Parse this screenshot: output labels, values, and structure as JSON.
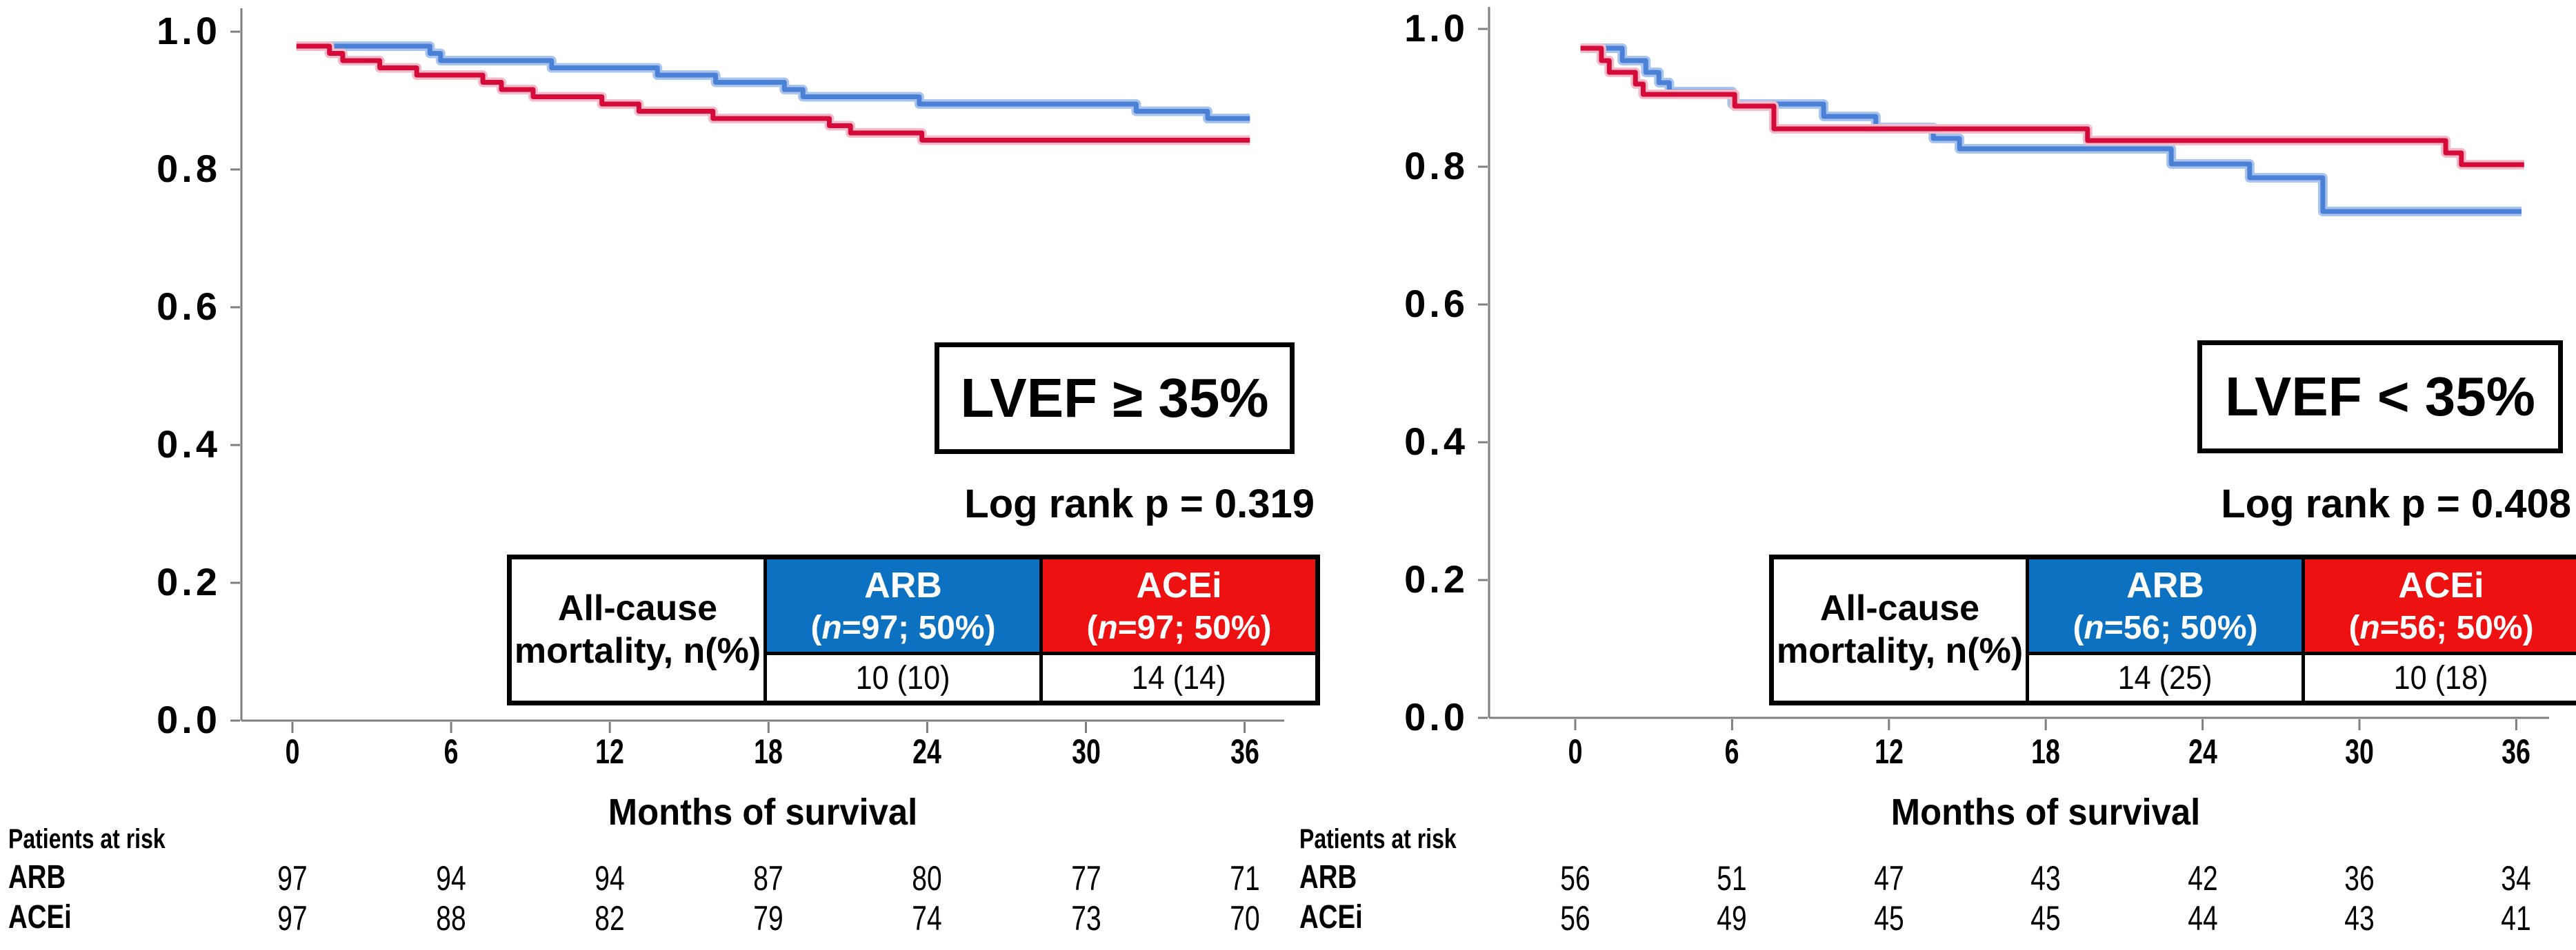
{
  "chart_data": [
    {
      "type": "line",
      "subtype": "kaplan-meier-step",
      "title": "LVEF ≥ 35%",
      "log_rank_label": "Log rank p = 0.319",
      "xlabel": "Months of survival",
      "x_ticks": [
        0,
        6,
        12,
        18,
        24,
        30,
        36
      ],
      "y_ticks": [
        {
          "label": "1.0",
          "value": 1.0
        },
        {
          "label": "0.8",
          "value": 0.8
        },
        {
          "label": "0.6",
          "value": 0.6
        },
        {
          "label": "0.4",
          "value": 0.4
        },
        {
          "label": "0.2",
          "value": 0.2
        },
        {
          "label": "0.0",
          "value": 0.0
        }
      ],
      "xlim": [
        0,
        38
      ],
      "ylim": [
        0,
        1.05
      ],
      "grid": false,
      "legend_position": "none",
      "series": [
        {
          "name": "ARB",
          "color": "#4a80d6",
          "halo": "#a9c5ed",
          "points": [
            [
              0.15,
              0.979
            ],
            [
              5.2,
              0.979
            ],
            [
              5.2,
              0.9685
            ],
            [
              5.6,
              0.9685
            ],
            [
              5.6,
              0.958
            ],
            [
              9.8,
              0.958
            ],
            [
              9.8,
              0.9475
            ],
            [
              13.8,
              0.9475
            ],
            [
              13.8,
              0.937
            ],
            [
              16.0,
              0.937
            ],
            [
              16.0,
              0.9265
            ],
            [
              18.6,
              0.9265
            ],
            [
              18.6,
              0.916
            ],
            [
              19.3,
              0.916
            ],
            [
              19.3,
              0.9055
            ],
            [
              23.7,
              0.9055
            ],
            [
              23.7,
              0.895
            ],
            [
              31.9,
              0.895
            ],
            [
              31.9,
              0.8845
            ],
            [
              34.6,
              0.8845
            ],
            [
              34.6,
              0.874
            ],
            [
              36.2,
              0.874
            ]
          ]
        },
        {
          "name": "ACEi",
          "color": "#d40a38",
          "halo": "#f5bbca",
          "points": [
            [
              0.15,
              0.979
            ],
            [
              1.4,
              0.979
            ],
            [
              1.4,
              0.9685
            ],
            [
              1.9,
              0.9685
            ],
            [
              1.9,
              0.958
            ],
            [
              3.3,
              0.958
            ],
            [
              3.3,
              0.9475
            ],
            [
              4.7,
              0.9475
            ],
            [
              4.7,
              0.937
            ],
            [
              7.2,
              0.937
            ],
            [
              7.2,
              0.9265
            ],
            [
              7.9,
              0.9265
            ],
            [
              7.9,
              0.916
            ],
            [
              9.1,
              0.916
            ],
            [
              9.1,
              0.9055
            ],
            [
              11.7,
              0.9055
            ],
            [
              11.7,
              0.895
            ],
            [
              13.1,
              0.895
            ],
            [
              13.1,
              0.8845
            ],
            [
              15.9,
              0.8845
            ],
            [
              15.9,
              0.874
            ],
            [
              20.3,
              0.874
            ],
            [
              20.3,
              0.8635
            ],
            [
              21.1,
              0.8635
            ],
            [
              21.1,
              0.853
            ],
            [
              23.8,
              0.853
            ],
            [
              23.8,
              0.8425
            ],
            [
              36.2,
              0.8425
            ]
          ]
        }
      ],
      "mortality_table": {
        "row_label_lines": [
          "All-cause",
          "mortality, n(%)"
        ],
        "columns": [
          {
            "name": "ARB",
            "n_parts": [
              "(",
              "n",
              "=97; 50%)"
            ],
            "value": "10 (10)",
            "color": "#0d71c1"
          },
          {
            "name": "ACEi",
            "n_parts": [
              "(",
              "n",
              "=97; 50%)"
            ],
            "value": "14 (14)",
            "color": "#ee1111"
          }
        ]
      },
      "at_risk": {
        "header": "Patients at risk",
        "rows": [
          {
            "label": "ARB",
            "values": [
              97,
              94,
              94,
              87,
              80,
              77,
              71
            ]
          },
          {
            "label": "ACEi",
            "values": [
              97,
              88,
              82,
              79,
              74,
              73,
              70
            ]
          }
        ]
      }
    },
    {
      "type": "line",
      "subtype": "kaplan-meier-step",
      "title": "LVEF < 35%",
      "log_rank_label": "Log rank p = 0.408",
      "xlabel": "Months of survival",
      "x_ticks": [
        0,
        6,
        12,
        18,
        24,
        30,
        36
      ],
      "y_ticks": [
        {
          "label": "1.0",
          "value": 1.0
        },
        {
          "label": "0.8",
          "value": 0.8
        },
        {
          "label": "0.6",
          "value": 0.6
        },
        {
          "label": "0.4",
          "value": 0.4
        },
        {
          "label": "0.2",
          "value": 0.2
        },
        {
          "label": "0.0",
          "value": 0.0
        }
      ],
      "xlim": [
        0,
        38
      ],
      "ylim": [
        0,
        1.05
      ],
      "grid": false,
      "legend_position": "none",
      "series": [
        {
          "name": "ARB",
          "color": "#4a80d6",
          "halo": "#a9c5ed",
          "points": [
            [
              0.2,
              0.972
            ],
            [
              1.8,
              0.972
            ],
            [
              1.8,
              0.954
            ],
            [
              2.7,
              0.954
            ],
            [
              2.7,
              0.937
            ],
            [
              3.2,
              0.937
            ],
            [
              3.2,
              0.922
            ],
            [
              3.6,
              0.922
            ],
            [
              3.6,
              0.909
            ],
            [
              6.0,
              0.909
            ],
            [
              6.0,
              0.891
            ],
            [
              9.5,
              0.891
            ],
            [
              9.5,
              0.873
            ],
            [
              11.5,
              0.873
            ],
            [
              11.5,
              0.857
            ],
            [
              13.7,
              0.857
            ],
            [
              13.7,
              0.841
            ],
            [
              14.7,
              0.841
            ],
            [
              14.7,
              0.826
            ],
            [
              22.8,
              0.826
            ],
            [
              22.8,
              0.804
            ],
            [
              25.8,
              0.804
            ],
            [
              25.8,
              0.784
            ],
            [
              28.6,
              0.784
            ],
            [
              28.6,
              0.735
            ],
            [
              36.2,
              0.735
            ]
          ]
        },
        {
          "name": "ACEi",
          "color": "#d40a38",
          "halo": "#f5bbca",
          "points": [
            [
              0.2,
              0.972
            ],
            [
              1.0,
              0.972
            ],
            [
              1.0,
              0.954
            ],
            [
              1.3,
              0.954
            ],
            [
              1.3,
              0.937
            ],
            [
              2.3,
              0.937
            ],
            [
              2.3,
              0.92
            ],
            [
              2.6,
              0.92
            ],
            [
              2.6,
              0.905
            ],
            [
              6.1,
              0.905
            ],
            [
              6.1,
              0.888
            ],
            [
              7.6,
              0.888
            ],
            [
              7.6,
              0.855
            ],
            [
              19.6,
              0.855
            ],
            [
              19.6,
              0.838
            ],
            [
              33.3,
              0.838
            ],
            [
              33.3,
              0.82
            ],
            [
              33.9,
              0.82
            ],
            [
              33.9,
              0.803
            ],
            [
              36.3,
              0.803
            ]
          ]
        }
      ],
      "mortality_table": {
        "row_label_lines": [
          "All-cause",
          "mortality, n(%)"
        ],
        "columns": [
          {
            "name": "ARB",
            "n_parts": [
              "(",
              "n",
              "=56; 50%)"
            ],
            "value": "14 (25)",
            "color": "#0d71c1"
          },
          {
            "name": "ACEi",
            "n_parts": [
              "(",
              "n",
              "=56; 50%)"
            ],
            "value": "10 (18)",
            "color": "#ee1111"
          }
        ]
      },
      "at_risk": {
        "header": "Patients at risk",
        "rows": [
          {
            "label": "ARB",
            "values": [
              56,
              51,
              47,
              43,
              42,
              36,
              34
            ]
          },
          {
            "label": "ACEi",
            "values": [
              56,
              49,
              45,
              45,
              44,
              43,
              41
            ]
          }
        ]
      }
    }
  ]
}
